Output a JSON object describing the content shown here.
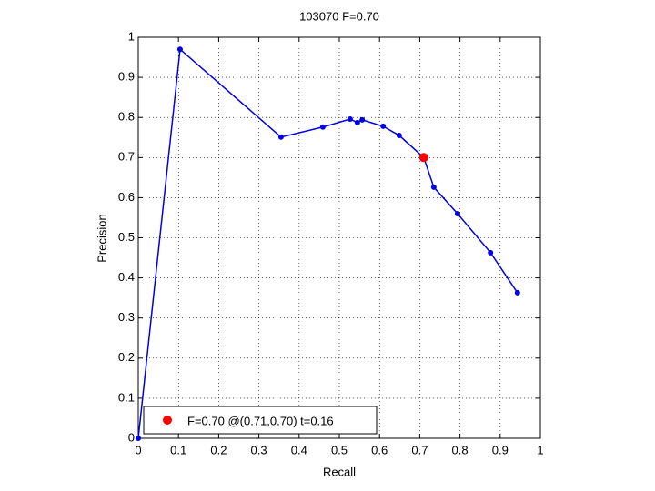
{
  "chart_data": {
    "type": "line",
    "title": "103070 F=0.70",
    "xlabel": "Recall",
    "ylabel": "Precision",
    "xlim": [
      0,
      1
    ],
    "ylim": [
      0,
      1
    ],
    "xticks": [
      0,
      0.1,
      0.2,
      0.3,
      0.4,
      0.5,
      0.6,
      0.7,
      0.8,
      0.9,
      1
    ],
    "yticks": [
      0,
      0.1,
      0.2,
      0.3,
      0.4,
      0.5,
      0.6,
      0.7,
      0.8,
      0.9,
      1
    ],
    "grid": true,
    "legend": "lower left",
    "series": [
      {
        "color": "#0000e0",
        "x": [
          0,
          0.104,
          0.355,
          0.459,
          0.527,
          0.545,
          0.557,
          0.609,
          0.649,
          0.71,
          0.735,
          0.794,
          0.876,
          0.943
        ],
        "values": [
          0,
          0.97,
          0.751,
          0.776,
          0.796,
          0.787,
          0.794,
          0.778,
          0.755,
          0.7,
          0.626,
          0.56,
          0.463,
          0.363
        ]
      },
      {
        "name": "F=0.70 @(0.71,0.70) t=0.16",
        "color": "#ff0000",
        "x": [
          0.71
        ],
        "values": [
          0.7
        ]
      }
    ]
  }
}
